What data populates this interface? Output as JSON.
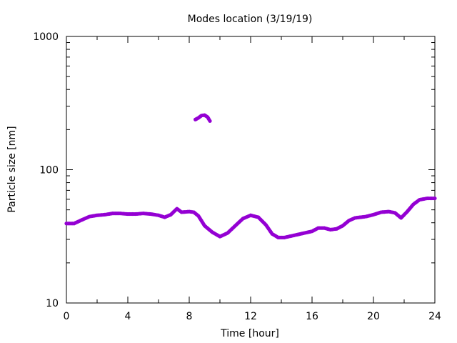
{
  "chart_data": {
    "type": "scatter",
    "title": "Modes location (3/19/19)",
    "xlabel": "Time [hour]",
    "ylabel": "Particle size [nm]",
    "xlim": [
      0,
      24
    ],
    "ylim": [
      10,
      1000
    ],
    "yscale": "log",
    "x_ticks": [
      0,
      4,
      8,
      12,
      16,
      20,
      24
    ],
    "x_tick_labels": [
      "0",
      "4",
      "8",
      "12",
      "16",
      "20",
      "24"
    ],
    "y_ticks": [
      10,
      100,
      1000
    ],
    "y_tick_labels": [
      "10",
      "100",
      "1000"
    ],
    "grid": false,
    "legend": "none",
    "marker_color": "#9400d3",
    "series": [
      {
        "points": [
          [
            0.0,
            39.5
          ],
          [
            0.5,
            39.5
          ],
          [
            1.0,
            42.0
          ],
          [
            1.5,
            44.5
          ],
          [
            2.0,
            45.5
          ],
          [
            2.5,
            46.0
          ],
          [
            3.0,
            47.0
          ],
          [
            3.5,
            47.0
          ],
          [
            4.0,
            46.5
          ],
          [
            4.5,
            46.5
          ],
          [
            5.0,
            47.0
          ],
          [
            5.5,
            46.5
          ],
          [
            6.0,
            45.5
          ],
          [
            6.4,
            44.0
          ],
          [
            6.8,
            46.0
          ],
          [
            7.2,
            51.0
          ],
          [
            7.5,
            48.0
          ],
          [
            8.0,
            48.5
          ],
          [
            8.3,
            48.0
          ],
          [
            8.6,
            45.0
          ],
          [
            9.0,
            38.0
          ],
          [
            9.5,
            34.0
          ],
          [
            10.0,
            31.5
          ],
          [
            10.5,
            33.5
          ],
          [
            11.0,
            38.0
          ],
          [
            11.5,
            43.0
          ],
          [
            12.0,
            45.5
          ],
          [
            12.5,
            44.0
          ],
          [
            13.0,
            38.5
          ],
          [
            13.4,
            33.0
          ],
          [
            13.8,
            31.0
          ],
          [
            14.2,
            31.0
          ],
          [
            15.0,
            32.5
          ],
          [
            15.5,
            33.5
          ],
          [
            16.0,
            34.5
          ],
          [
            16.4,
            36.5
          ],
          [
            16.8,
            36.5
          ],
          [
            17.2,
            35.5
          ],
          [
            17.6,
            36.0
          ],
          [
            18.0,
            38.0
          ],
          [
            18.4,
            41.5
          ],
          [
            18.8,
            43.5
          ],
          [
            19.5,
            44.5
          ],
          [
            20.0,
            46.0
          ],
          [
            20.5,
            48.0
          ],
          [
            21.0,
            48.5
          ],
          [
            21.4,
            47.5
          ],
          [
            21.8,
            43.5
          ],
          [
            22.2,
            48.5
          ],
          [
            22.6,
            55.0
          ],
          [
            23.0,
            59.5
          ],
          [
            23.5,
            61.0
          ],
          [
            24.0,
            61.0
          ]
        ]
      },
      {
        "points": [
          [
            8.4,
            238
          ],
          [
            8.6,
            245
          ],
          [
            8.8,
            255
          ],
          [
            9.0,
            257
          ],
          [
            9.2,
            248
          ],
          [
            9.35,
            232
          ]
        ]
      }
    ]
  }
}
